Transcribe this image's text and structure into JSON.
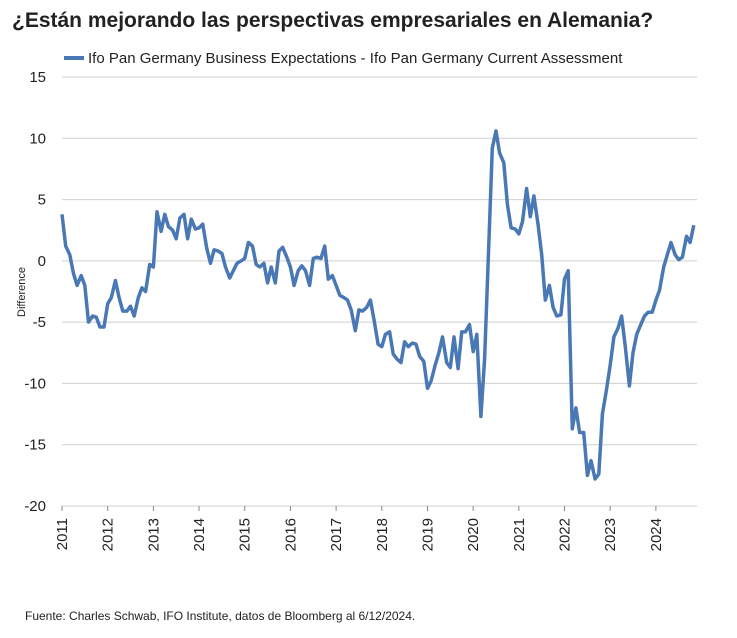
{
  "chart_data": {
    "type": "line",
    "title": "¿Están mejorando las perspectivas empresariales en Alemania?",
    "ylabel": "Difference",
    "source": "Fuente: Charles Schwab, IFO Institute, datos de Bloomberg al 6/12/2024.",
    "xlim": [
      2011,
      2024.9
    ],
    "xticks": [
      2011,
      2012,
      2013,
      2014,
      2015,
      2016,
      2017,
      2018,
      2019,
      2020,
      2021,
      2022,
      2023,
      2024
    ],
    "ylim": [
      -20,
      15
    ],
    "yticks": [
      -20,
      -15,
      -10,
      -5,
      0,
      5,
      10,
      15
    ],
    "grid": true,
    "legend": "top",
    "x": [
      2011.0,
      2011.08,
      2011.17,
      2011.25,
      2011.33,
      2011.42,
      2011.5,
      2011.58,
      2011.67,
      2011.75,
      2011.83,
      2011.92,
      2012.0,
      2012.08,
      2012.17,
      2012.25,
      2012.33,
      2012.42,
      2012.5,
      2012.58,
      2012.67,
      2012.75,
      2012.83,
      2012.92,
      2013.0,
      2013.08,
      2013.17,
      2013.25,
      2013.33,
      2013.42,
      2013.5,
      2013.58,
      2013.67,
      2013.75,
      2013.83,
      2013.92,
      2014.0,
      2014.08,
      2014.17,
      2014.25,
      2014.33,
      2014.42,
      2014.5,
      2014.58,
      2014.67,
      2014.75,
      2014.83,
      2014.92,
      2015.0,
      2015.08,
      2015.17,
      2015.25,
      2015.33,
      2015.42,
      2015.5,
      2015.58,
      2015.67,
      2015.75,
      2015.83,
      2015.92,
      2016.0,
      2016.08,
      2016.17,
      2016.25,
      2016.33,
      2016.42,
      2016.5,
      2016.58,
      2016.67,
      2016.75,
      2016.83,
      2016.92,
      2017.0,
      2017.08,
      2017.17,
      2017.25,
      2017.33,
      2017.42,
      2017.5,
      2017.58,
      2017.67,
      2017.75,
      2017.83,
      2017.92,
      2018.0,
      2018.08,
      2018.17,
      2018.25,
      2018.33,
      2018.42,
      2018.5,
      2018.58,
      2018.67,
      2018.75,
      2018.83,
      2018.92,
      2019.0,
      2019.08,
      2019.17,
      2019.25,
      2019.33,
      2019.42,
      2019.5,
      2019.58,
      2019.67,
      2019.75,
      2019.83,
      2019.92,
      2020.0,
      2020.08,
      2020.17,
      2020.25,
      2020.33,
      2020.42,
      2020.5,
      2020.58,
      2020.67,
      2020.75,
      2020.83,
      2020.92,
      2021.0,
      2021.08,
      2021.17,
      2021.25,
      2021.33,
      2021.42,
      2021.5,
      2021.58,
      2021.67,
      2021.75,
      2021.83,
      2021.92,
      2022.0,
      2022.08,
      2022.17,
      2022.25,
      2022.33,
      2022.42,
      2022.5,
      2022.58,
      2022.67,
      2022.75,
      2022.83,
      2022.92,
      2023.0,
      2023.08,
      2023.17,
      2023.25,
      2023.33,
      2023.42,
      2023.5,
      2023.58,
      2023.67,
      2023.75,
      2023.83,
      2023.92,
      2024.0,
      2024.08,
      2024.17,
      2024.25,
      2024.33,
      2024.42,
      2024.5,
      2024.58,
      2024.67,
      2024.75,
      2024.83
    ],
    "series": [
      {
        "name": "Ifo Pan Germany Business Expectations - Ifo Pan Germany Current Assessment",
        "color": "#4a78b5",
        "values": [
          3.8,
          1.2,
          0.5,
          -1,
          -2,
          -1.2,
          -2,
          -5,
          -4.5,
          -4.6,
          -5.4,
          -5.4,
          -3.5,
          -3,
          -1.6,
          -3,
          -4.1,
          -4.1,
          -3.7,
          -4.5,
          -3,
          -2.2,
          -2.5,
          -0.3,
          -0.5,
          4,
          2.4,
          3.8,
          2.8,
          2.5,
          1.8,
          3.5,
          3.8,
          1.8,
          3.4,
          2.6,
          2.7,
          3,
          1,
          -0.2,
          0.9,
          0.8,
          0.6,
          -0.5,
          -1.4,
          -0.8,
          -0.2,
          0,
          0.2,
          1.5,
          1.2,
          -0.3,
          -0.5,
          -0.2,
          -1.8,
          -0.5,
          -1.8,
          0.8,
          1.1,
          0.3,
          -0.5,
          -2,
          -0.8,
          -0.4,
          -0.8,
          -2,
          0.2,
          0.3,
          0.2,
          1.2,
          -1.5,
          -1.2,
          -2,
          -2.8,
          -3,
          -3.2,
          -4,
          -5.7,
          -4,
          -4.1,
          -3.8,
          -3.2,
          -4.8,
          -6.8,
          -7,
          -6,
          -5.8,
          -7.6,
          -8,
          -8.3,
          -6.6,
          -7,
          -6.7,
          -6.8,
          -7.8,
          -8.2,
          -10.4,
          -9.8,
          -8.5,
          -7.5,
          -6.2,
          -8.3,
          -8.7,
          -6.2,
          -8.8,
          -5.8,
          -5.8,
          -5.2,
          -7.4,
          -6,
          -12.7,
          -8,
          0,
          9.2,
          10.6,
          8.8,
          8,
          4.6,
          2.7,
          2.6,
          2.2,
          3.2,
          5.9,
          3.6,
          5.3,
          3,
          0.5,
          -3.2,
          -2,
          -3.8,
          -4.5,
          -4.4,
          -1.5,
          -0.8,
          -13.7,
          -12,
          -14,
          -14,
          -17.5,
          -16.3,
          -17.8,
          -17.4,
          -12.5,
          -10.5,
          -8.5,
          -6.2,
          -5.5,
          -4.5,
          -7,
          -10.2,
          -7.5,
          -6,
          -5.2,
          -4.5,
          -4.2,
          -4.2,
          -3.2,
          -2.4,
          -0.5,
          0.5,
          1.5,
          0.5,
          0.1,
          0.3,
          2,
          1.5,
          2.9
        ]
      }
    ]
  }
}
